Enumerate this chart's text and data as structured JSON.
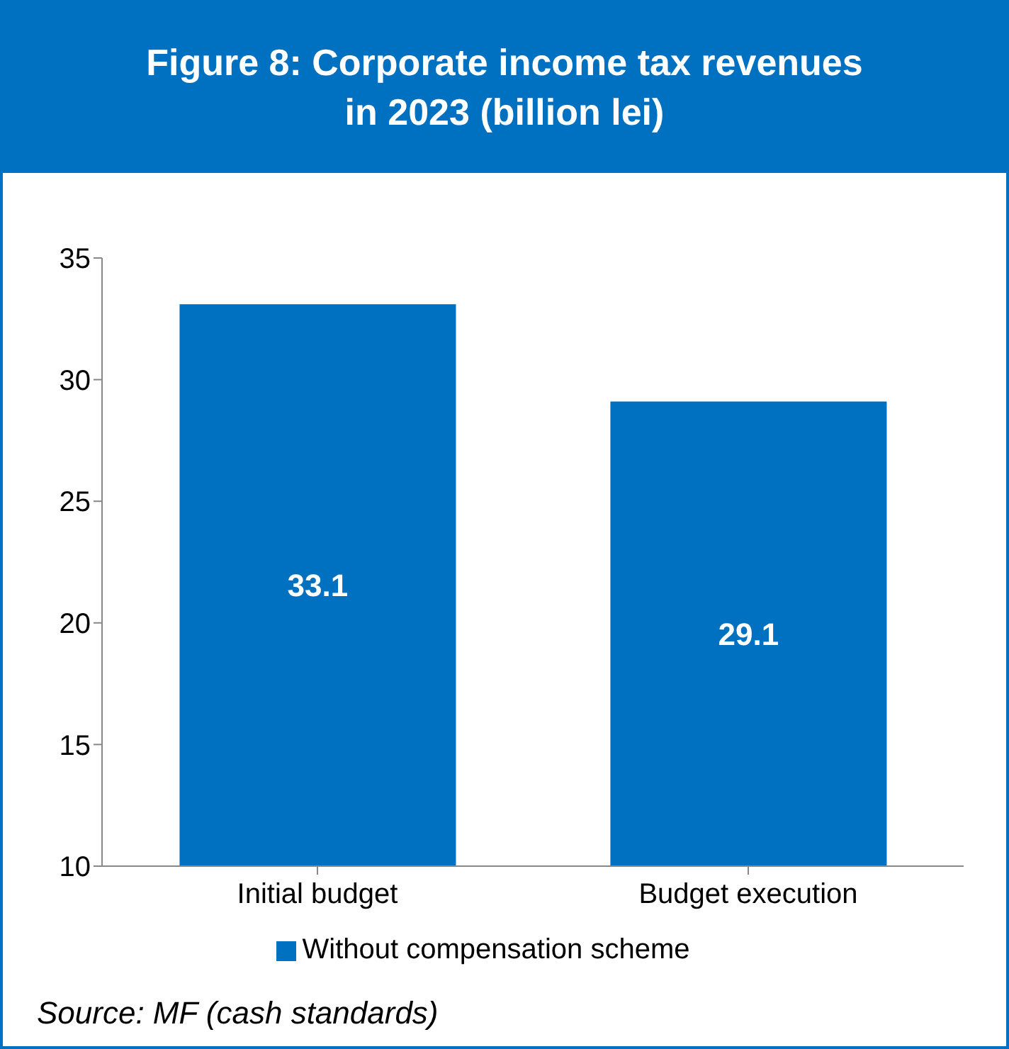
{
  "chart_data": {
    "type": "bar",
    "title": "Figure 8: Corporate income tax revenues\nin 2023 (billion lei)",
    "categories": [
      "Initial budget",
      "Budget execution"
    ],
    "series": [
      {
        "name": "Without compensation scheme",
        "color": "#0070c0",
        "values": [
          33.1,
          29.1
        ]
      }
    ],
    "ylim": [
      10,
      35
    ],
    "yticks": [
      10,
      15,
      20,
      25,
      30,
      35
    ],
    "grid": false,
    "legend": "bottom",
    "data_labels": true,
    "annotations": [
      "Source: MF (cash standards)"
    ]
  }
}
